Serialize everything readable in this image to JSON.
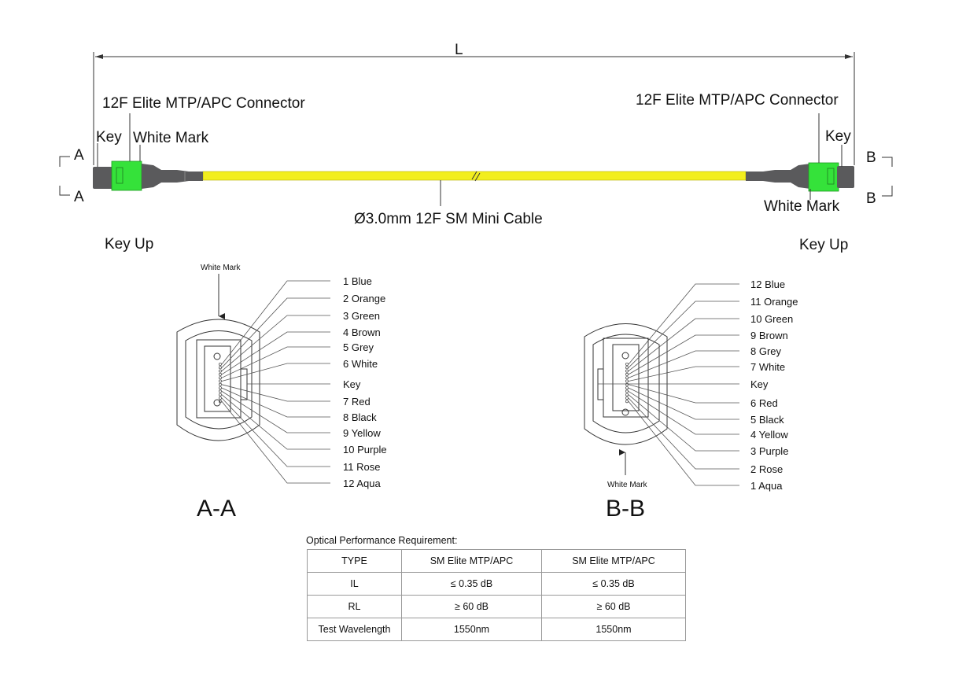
{
  "dimension": {
    "label": "L"
  },
  "left_end": {
    "connector_label": "12F Elite MTP/APC Connector",
    "key_label": "Key",
    "white_mark_label": "White Mark",
    "section_mark": "A",
    "orientation_label": "Key Up"
  },
  "right_end": {
    "connector_label": "12F Elite MTP/APC Connector",
    "key_label": "Key",
    "white_mark_label": "White Mark",
    "section_mark": "B",
    "orientation_label": "Key Up"
  },
  "cable": {
    "label": "Ø3.0mm 12F SM Mini Cable"
  },
  "colors": {
    "cable": "#f2ee1e",
    "connector_body": "#5a5a5c",
    "connector_housing": "#35e23a",
    "line": "#333333"
  },
  "section_a": {
    "title": "A-A",
    "white_mark_label": "White Mark",
    "fibers": [
      "1 Blue",
      "2 Orange",
      "3 Green",
      "4 Brown",
      "5 Grey",
      "6 White",
      "Key",
      "7 Red",
      "8 Black",
      "9 Yellow",
      "10 Purple",
      "11 Rose",
      "12 Aqua"
    ]
  },
  "section_b": {
    "title": "B-B",
    "white_mark_label": "White Mark",
    "fibers": [
      "12 Blue",
      "11 Orange",
      "10 Green",
      "9 Brown",
      "8 Grey",
      "7 White",
      "Key",
      "6 Red",
      "5 Black",
      "4 Yellow",
      "3 Purple",
      "2 Rose",
      "1 Aqua"
    ]
  },
  "performance": {
    "title": "Optical Performance Requirement:",
    "rows": [
      [
        "TYPE",
        "SM Elite MTP/APC",
        "SM Elite MTP/APC"
      ],
      [
        "IL",
        "≤ 0.35 dB",
        "≤ 0.35 dB"
      ],
      [
        "RL",
        "≥ 60 dB",
        "≥ 60 dB"
      ],
      [
        "Test Wavelength",
        "1550nm",
        "1550nm"
      ]
    ]
  }
}
